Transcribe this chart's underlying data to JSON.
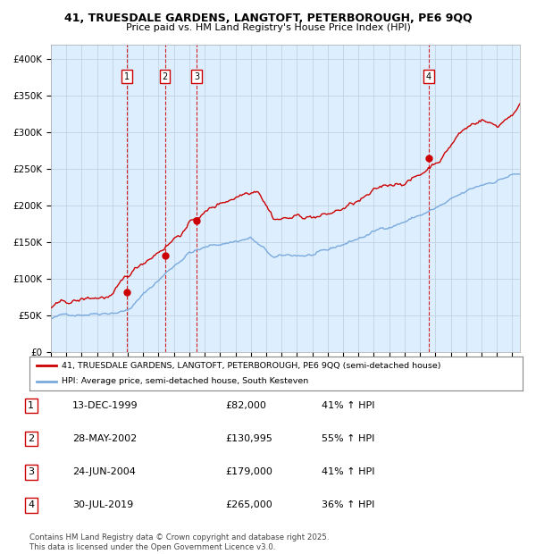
{
  "title1": "41, TRUESDALE GARDENS, LANGTOFT, PETERBOROUGH, PE6 9QQ",
  "title2": "Price paid vs. HM Land Registry's House Price Index (HPI)",
  "legend_line1": "41, TRUESDALE GARDENS, LANGTOFT, PETERBOROUGH, PE6 9QQ (semi-detached house)",
  "legend_line2": "HPI: Average price, semi-detached house, South Kesteven",
  "footer": "Contains HM Land Registry data © Crown copyright and database right 2025.\nThis data is licensed under the Open Government Licence v3.0.",
  "transactions": [
    {
      "num": 1,
      "date": "13-DEC-1999",
      "price": 82000,
      "pct": "41% ↑ HPI",
      "year": 1999.95
    },
    {
      "num": 2,
      "date": "28-MAY-2002",
      "price": 130995,
      "pct": "55% ↑ HPI",
      "year": 2002.41
    },
    {
      "num": 3,
      "date": "24-JUN-2004",
      "price": 179000,
      "pct": "41% ↑ HPI",
      "year": 2004.48
    },
    {
      "num": 4,
      "date": "30-JUL-2019",
      "price": 265000,
      "pct": "36% ↑ HPI",
      "year": 2019.58
    }
  ],
  "price_labels": [
    "£82,000",
    "£130,995",
    "£179,000",
    "£265,000"
  ],
  "red_line_color": "#cc0000",
  "blue_line_color": "#7aaadd",
  "background_color": "#ddeeff",
  "plot_bg_color": "#ffffff",
  "grid_color": "#bbccdd",
  "vline_color": "#cc0000",
  "ylim": [
    0,
    420000
  ],
  "xlim_start": 1995,
  "xlim_end": 2025.5,
  "yticks": [
    0,
    50000,
    100000,
    150000,
    200000,
    250000,
    300000,
    350000,
    400000
  ],
  "ytick_labels": [
    "£0",
    "£50K",
    "£100K",
    "£150K",
    "£200K",
    "£250K",
    "£300K",
    "£350K",
    "£400K"
  ]
}
